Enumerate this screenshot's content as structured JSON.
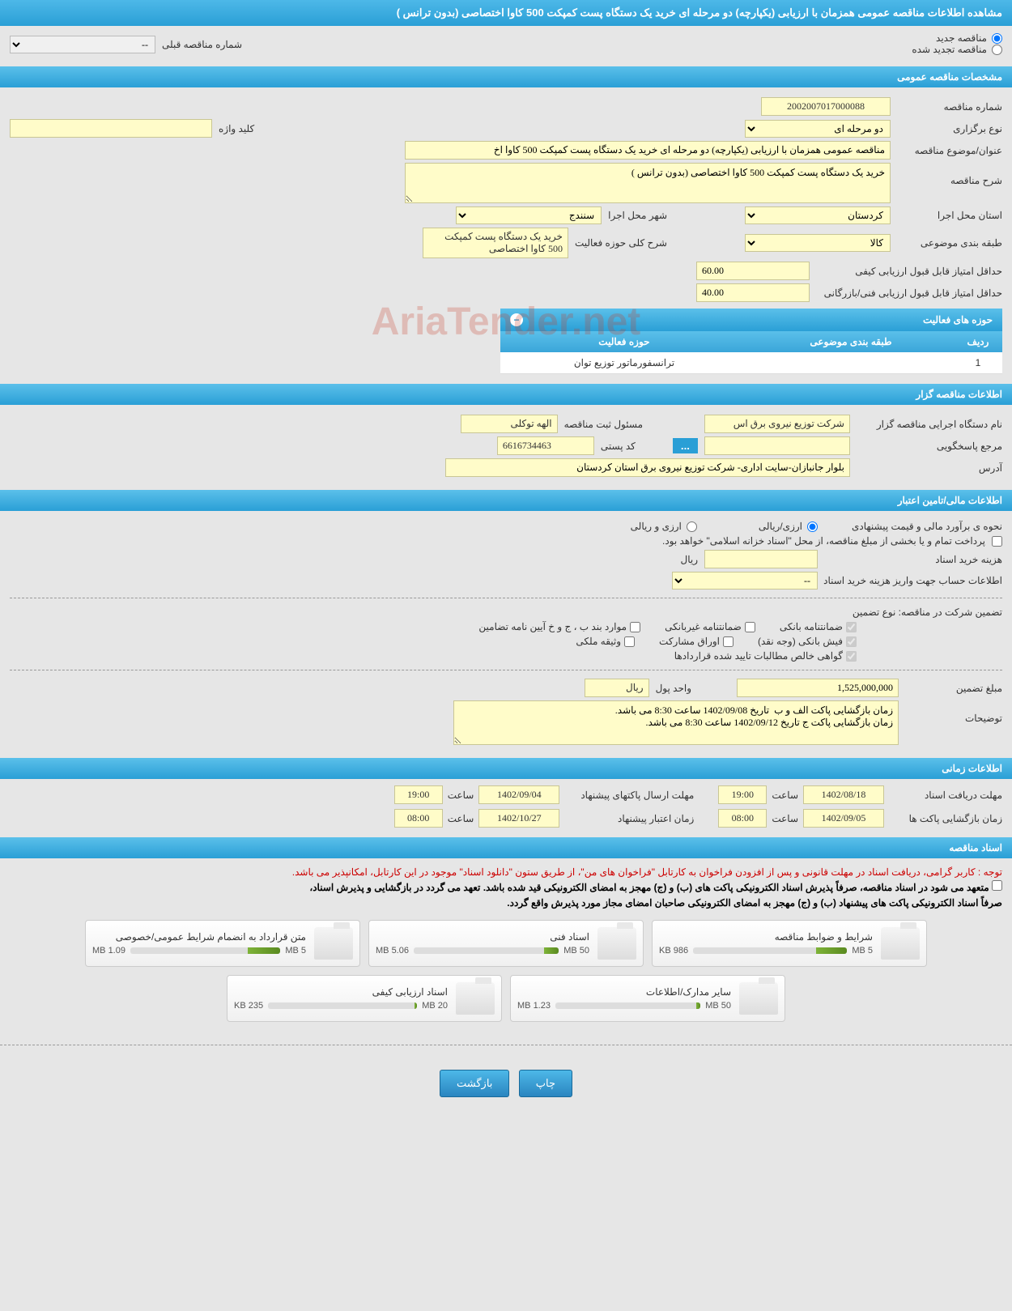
{
  "header": {
    "title": "مشاهده اطلاعات مناقصه عمومی همزمان با ارزیابی (یکپارچه) دو مرحله ای خرید یک دستگاه پست کمپکت 500 کاوا اختصاصی (بدون ترانس )"
  },
  "tender_type": {
    "new_label": "مناقصه جدید",
    "renewed_label": "مناقصه تجدید شده",
    "prev_number_label": "شماره مناقصه قبلی",
    "prev_number_value": "--"
  },
  "sections": {
    "general": "مشخصات مناقصه عمومی",
    "organizer": "اطلاعات مناقصه گزار",
    "financial": "اطلاعات مالی/تامین اعتبار",
    "timing": "اطلاعات زمانی",
    "documents": "اسناد مناقصه"
  },
  "general": {
    "tender_number_label": "شماره مناقصه",
    "tender_number": "2002007017000088",
    "hold_type_label": "نوع برگزاری",
    "hold_type": "دو مرحله ای",
    "keyword_label": "کلید واژه",
    "keyword": "",
    "title_label": "عنوان/موضوع مناقصه",
    "title": "مناقصه عمومی همزمان با ارزیابی (یکپارچه) دو مرحله ای خرید یک دستگاه پست کمپکت 500 کاوا اخ",
    "description_label": "شرح مناقصه",
    "description": "خرید یک دستگاه پست کمپکت 500 کاوا اختصاصی (بدون ترانس )",
    "province_label": "استان محل اجرا",
    "province": "کردستان",
    "city_label": "شهر محل اجرا",
    "city": "سنندج",
    "category_label": "طبقه بندی موضوعی",
    "category": "کالا",
    "scope_desc_label": "شرح کلی حوزه فعالیت",
    "scope_desc": "خرید یک دستگاه پست کمپکت 500 کاوا اختصاصی",
    "min_quality_label": "حداقل امتیاز قابل قبول ارزیابی کیفی",
    "min_quality": "60.00",
    "min_tech_label": "حداقل امتیاز قابل قبول ارزیابی فنی/بازرگانی",
    "min_tech": "40.00"
  },
  "activity_table": {
    "title": "حوزه های فعالیت",
    "col_row": "ردیف",
    "col_category": "طبقه بندی موضوعی",
    "col_scope": "حوزه فعالیت",
    "rows": [
      {
        "n": "1",
        "category": "",
        "scope": "ترانسفورماتور توزیع توان"
      }
    ]
  },
  "organizer": {
    "org_label": "نام دستگاه اجرایی مناقصه گزار",
    "org": "شرکت توزیع نیروی برق اس",
    "registrar_label": "مسئول ثبت مناقصه",
    "registrar": "الهه توکلی",
    "contact_label": "مرجع پاسخگویی",
    "postal_label": "کد پستی",
    "postal": "6616734463",
    "address_label": "آدرس",
    "address": "بلوار جانبازان-سایت اداری- شرکت توزیع نیروی برق استان کردستان"
  },
  "financial": {
    "estimate_label": "نحوه ی برآورد مالی و قیمت پیشنهادی",
    "rial_label": "ارزی/ریالی",
    "mixed_label": "ارزی و ریالی",
    "payment_note": "پرداخت تمام و یا بخشی از مبلغ مناقصه، از محل \"اسناد خزانه اسلامی\" خواهد بود.",
    "doc_fee_label": "هزینه خرید اسناد",
    "doc_fee_unit": "ریال",
    "account_label": "اطلاعات حساب جهت واریز هزینه خرید اسناد",
    "account_value": "--",
    "guarantee_label": "تضمین شرکت در مناقصه:   نوع تضمین",
    "chk_bank": "ضمانتنامه بانکی",
    "chk_nonbank": "ضمانتنامه غیربانکی",
    "chk_bond": "موارد بند ب ، ج و خ آیین نامه تضامین",
    "chk_receipt": "فیش بانکی (وجه نقد)",
    "chk_securities": "اوراق مشارکت",
    "chk_property": "وثیقه ملکی",
    "chk_verified": "گواهی خالص مطالبات تایید شده قراردادها",
    "amount_label": "مبلغ تضمین",
    "amount": "1,525,000,000",
    "unit_label": "واحد پول",
    "unit": "ریال",
    "notes_label": "توضیحات",
    "notes": "زمان بازگشایی پاکت الف و ب  تاریخ 1402/09/08 ساعت 8:30 می باشد.\nزمان بازگشایی پاکت ج تاریخ 1402/09/12 ساعت 8:30 می باشد."
  },
  "timing": {
    "doc_deadline_label": "مهلت دریافت اسناد",
    "doc_deadline_date": "1402/08/18",
    "time_label": "ساعت",
    "doc_deadline_time": "19:00",
    "proposal_deadline_label": "مهلت ارسال پاکتهای پیشنهاد",
    "proposal_deadline_date": "1402/09/04",
    "proposal_deadline_time": "19:00",
    "opening_label": "زمان بازگشایی پاکت ها",
    "opening_date": "1402/09/05",
    "opening_time": "08:00",
    "validity_label": "زمان اعتبار پیشنهاد",
    "validity_date": "1402/10/27",
    "validity_time": "08:00"
  },
  "docs_notes": {
    "red": "توجه : کاربر گرامی، دریافت اسناد در مهلت قانونی و پس از افزودن فراخوان به کارتابل \"فراخوان های من\"، از طریق ستون \"دانلود اسناد\" موجود در این کارتابل، امکانپذیر می باشد.",
    "black1": "متعهد می شود در اسناد مناقصه، صرفاً پذیرش اسناد الکترونیکی پاکت های (ب) و (ج) مهجز به امضای الکترونیکی قید شده باشد. تعهد می گردد در بازگشایی و پذیرش اسناد،",
    "black2": "صرفاً اسناد الکترونیکی پاکت های پیشنهاد (ب) و (ج) مهجز به امضای الکترونیکی صاحبان امضای مجاز مورد پذیرش واقع گردد."
  },
  "files": [
    {
      "title": "شرایط و ضوابط مناقصه",
      "size": "986 KB",
      "max": "5 MB",
      "pct": 20
    },
    {
      "title": "اسناد فنی",
      "size": "5.06 MB",
      "max": "50 MB",
      "pct": 10
    },
    {
      "title": "متن قرارداد به انضمام شرایط عمومی/خصوصی",
      "size": "1.09 MB",
      "max": "5 MB",
      "pct": 22
    },
    {
      "title": "سایر مدارک/اطلاعات",
      "size": "1.23 MB",
      "max": "50 MB",
      "pct": 3
    },
    {
      "title": "اسناد ارزیابی کیفی",
      "size": "235 KB",
      "max": "20 MB",
      "pct": 2
    }
  ],
  "buttons": {
    "print": "چاپ",
    "back": "بازگشت"
  },
  "watermark": "AriaTender.net"
}
